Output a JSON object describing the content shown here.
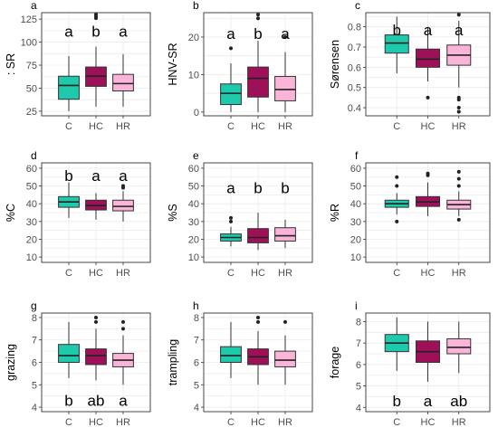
{
  "colors": {
    "C": "#1fc9ac",
    "HC": "#9e1158",
    "HR": "#f9b4d8",
    "grid": "#ebebeb",
    "panel_border": "#333333",
    "tick_text": "#4d4d4d"
  },
  "chart_data": [
    {
      "type": "box",
      "letter": "a",
      "ylabel": ": SR",
      "ylim": [
        20,
        132
      ],
      "yticks": [
        25,
        50,
        75,
        100,
        125
      ],
      "categories": [
        "C",
        "HC",
        "HR"
      ],
      "boxes": [
        {
          "q1": 38,
          "median": 53,
          "q3": 63,
          "whisker_low": 25,
          "whisker_high": 85,
          "outliers": []
        },
        {
          "q1": 52,
          "median": 63,
          "q3": 73,
          "whisker_low": 30,
          "whisker_high": 95,
          "outliers": [
            126,
            128,
            130
          ]
        },
        {
          "q1": 47,
          "median": 55,
          "q3": 65,
          "whisker_low": 30,
          "whisker_high": 87,
          "outliers": []
        }
      ],
      "group_letters": [
        "a",
        "b",
        "a"
      ],
      "letter_y": 112
    },
    {
      "type": "box",
      "letter": "b",
      "ylabel": "HNV-SR",
      "ylim": [
        -1,
        26.5
      ],
      "yticks": [
        0,
        10,
        20
      ],
      "categories": [
        "C",
        "HC",
        "HR"
      ],
      "boxes": [
        {
          "q1": 2,
          "median": 5,
          "q3": 7.5,
          "whisker_low": 0,
          "whisker_high": 13,
          "outliers": [
            17
          ]
        },
        {
          "q1": 4,
          "median": 9,
          "q3": 12,
          "whisker_low": 0,
          "whisker_high": 19,
          "outliers": [
            25,
            26
          ]
        },
        {
          "q1": 3,
          "median": 6,
          "q3": 9.5,
          "whisker_low": 0,
          "whisker_high": 16,
          "outliers": [
            20
          ]
        }
      ],
      "group_letters": [
        "a",
        "b",
        "a"
      ],
      "letter_y": 21
    },
    {
      "type": "box",
      "letter": "c",
      "ylabel": "Sørensen",
      "ylim": [
        0.36,
        0.87
      ],
      "yticks": [
        0.4,
        0.5,
        0.6,
        0.7,
        0.8
      ],
      "categories": [
        "C",
        "HC",
        "HR"
      ],
      "boxes": [
        {
          "q1": 0.67,
          "median": 0.72,
          "q3": 0.76,
          "whisker_low": 0.57,
          "whisker_high": 0.85,
          "outliers": []
        },
        {
          "q1": 0.6,
          "median": 0.64,
          "q3": 0.69,
          "whisker_low": 0.53,
          "whisker_high": 0.8,
          "outliers": [
            0.45
          ]
        },
        {
          "q1": 0.61,
          "median": 0.66,
          "q3": 0.71,
          "whisker_low": 0.5,
          "whisker_high": 0.83,
          "outliers": [
            0.45,
            0.44,
            0.4,
            0.38,
            0.86
          ]
        }
      ],
      "group_letters": [
        "b",
        "a",
        "a"
      ],
      "letter_y": 0.785
    },
    {
      "type": "box",
      "letter": "d",
      "ylabel": "%C",
      "ylim": [
        7,
        63
      ],
      "yticks": [
        10,
        20,
        30,
        40,
        50,
        60
      ],
      "categories": [
        "C",
        "HC",
        "HR"
      ],
      "boxes": [
        {
          "q1": 38,
          "median": 41,
          "q3": 44,
          "whisker_low": 32,
          "whisker_high": 52,
          "outliers": []
        },
        {
          "q1": 36.5,
          "median": 39,
          "q3": 42,
          "whisker_low": 31,
          "whisker_high": 46,
          "outliers": []
        },
        {
          "q1": 36,
          "median": 38.5,
          "q3": 42,
          "whisker_low": 30,
          "whisker_high": 47,
          "outliers": [
            49,
            50
          ]
        }
      ],
      "group_letters": [
        "b",
        "a",
        "a"
      ],
      "letter_y": 56
    },
    {
      "type": "box",
      "letter": "e",
      "ylabel": "%S",
      "ylim": [
        7,
        63
      ],
      "yticks": [
        10,
        20,
        30,
        40,
        50,
        60
      ],
      "categories": [
        "C",
        "HC",
        "HR"
      ],
      "boxes": [
        {
          "q1": 19,
          "median": 21,
          "q3": 23,
          "whisker_low": 16,
          "whisker_high": 27,
          "outliers": [
            30,
            32
          ]
        },
        {
          "q1": 18,
          "median": 21,
          "q3": 26,
          "whisker_low": 14,
          "whisker_high": 35,
          "outliers": []
        },
        {
          "q1": 19,
          "median": 22,
          "q3": 26.5,
          "whisker_low": 15,
          "whisker_high": 31,
          "outliers": []
        }
      ],
      "group_letters": [
        "a",
        "b",
        "b"
      ],
      "letter_y": 49
    },
    {
      "type": "box",
      "letter": "f",
      "ylabel": "%R",
      "ylim": [
        7,
        63
      ],
      "yticks": [
        10,
        20,
        30,
        40,
        50,
        60
      ],
      "categories": [
        "C",
        "HC",
        "HR"
      ],
      "boxes": [
        {
          "q1": 38,
          "median": 40,
          "q3": 42,
          "whisker_low": 34,
          "whisker_high": 46,
          "outliers": [
            30,
            50,
            55
          ]
        },
        {
          "q1": 38.5,
          "median": 41,
          "q3": 44,
          "whisker_low": 33,
          "whisker_high": 52,
          "outliers": [
            56,
            57
          ]
        },
        {
          "q1": 37,
          "median": 39.5,
          "q3": 42,
          "whisker_low": 33,
          "whisker_high": 47,
          "outliers": [
            31,
            50,
            54,
            58
          ]
        }
      ],
      "group_letters": [],
      "letter_y": null
    },
    {
      "type": "box",
      "letter": "g",
      "ylabel": "grazing",
      "ylim": [
        3.8,
        8.2
      ],
      "yticks": [
        4,
        5,
        6,
        7,
        8
      ],
      "categories": [
        "C",
        "HC",
        "HR"
      ],
      "boxes": [
        {
          "q1": 6.0,
          "median": 6.3,
          "q3": 6.8,
          "whisker_low": 5.3,
          "whisker_high": 7.8,
          "outliers": []
        },
        {
          "q1": 5.9,
          "median": 6.3,
          "q3": 6.6,
          "whisker_low": 5.2,
          "whisker_high": 7.5,
          "outliers": [
            7.8,
            8.0
          ]
        },
        {
          "q1": 5.8,
          "median": 6.1,
          "q3": 6.4,
          "whisker_low": 5.0,
          "whisker_high": 7.2,
          "outliers": [
            7.5,
            7.8
          ]
        }
      ],
      "group_letters": [
        "b",
        "ab",
        "a"
      ],
      "letter_y": 4.3
    },
    {
      "type": "box",
      "letter": "h",
      "ylabel": "trampling",
      "ylim": [
        3.8,
        8.2
      ],
      "yticks": [
        4,
        5,
        6,
        7,
        8
      ],
      "categories": [
        "C",
        "HC",
        "HR"
      ],
      "boxes": [
        {
          "q1": 6.0,
          "median": 6.3,
          "q3": 6.7,
          "whisker_low": 5.3,
          "whisker_high": 7.8,
          "outliers": []
        },
        {
          "q1": 5.9,
          "median": 6.25,
          "q3": 6.6,
          "whisker_low": 5.0,
          "whisker_high": 7.4,
          "outliers": [
            7.8,
            8.0
          ]
        },
        {
          "q1": 5.8,
          "median": 6.1,
          "q3": 6.5,
          "whisker_low": 5.0,
          "whisker_high": 7.2,
          "outliers": [
            7.8
          ]
        }
      ],
      "group_letters": [],
      "letter_y": null
    },
    {
      "type": "box",
      "letter": "i",
      "ylabel": "forage",
      "ylim": [
        3.8,
        8.4
      ],
      "yticks": [
        4,
        5,
        6,
        7,
        8
      ],
      "categories": [
        "C",
        "HC",
        "HR"
      ],
      "boxes": [
        {
          "q1": 6.6,
          "median": 7.0,
          "q3": 7.4,
          "whisker_low": 5.7,
          "whisker_high": 8.2,
          "outliers": []
        },
        {
          "q1": 6.1,
          "median": 6.6,
          "q3": 7.1,
          "whisker_low": 5.2,
          "whisker_high": 8.0,
          "outliers": []
        },
        {
          "q1": 6.5,
          "median": 6.8,
          "q3": 7.2,
          "whisker_low": 5.6,
          "whisker_high": 8.0,
          "outliers": []
        }
      ],
      "group_letters": [
        "b",
        "a",
        "ab"
      ],
      "letter_y": 4.3
    }
  ]
}
